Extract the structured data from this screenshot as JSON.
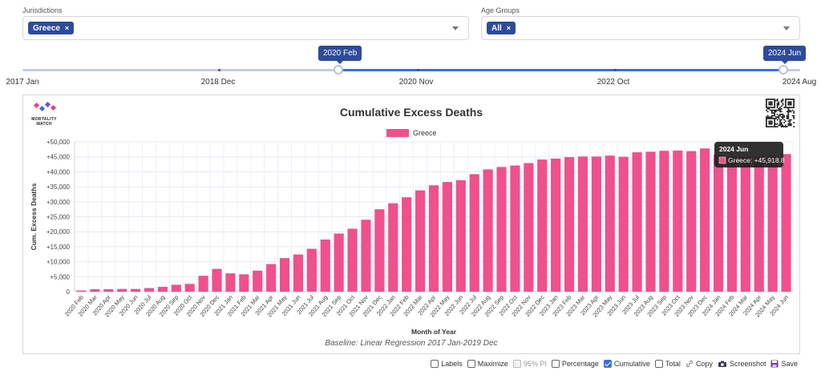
{
  "filters": {
    "jurisdictions": {
      "label": "Jurisdictions",
      "selected": "Greece",
      "remove": "×"
    },
    "age_groups": {
      "label": "Age Groups",
      "selected": "All",
      "remove": "×"
    }
  },
  "date_slider": {
    "start_label": "2020 Feb",
    "end_label": "2024 Jun",
    "axis_ticks": [
      "2017 Jan",
      "2018 Dec",
      "2020 Nov",
      "2022 Oct",
      "2024 Aug"
    ]
  },
  "logo": {
    "line1": "MORTALITY",
    "line2": "WATCH"
  },
  "toolbar": {
    "labels": "Labels",
    "maximize": "Maximize",
    "pi": "95% PI",
    "percentage": "Percentage",
    "cumulative": "Cumulative",
    "total": "Total",
    "copy": "Copy",
    "screenshot": "Screenshot",
    "save": "Save"
  },
  "colors": {
    "bar": "#f0508c",
    "accent": "#2e4b9b",
    "slider": "#3a6fe0"
  },
  "tooltip": {
    "title": "2024 Jun",
    "text": "Greece: +45,918.8"
  },
  "chart_data": {
    "type": "bar",
    "title": "Cumulative Excess Deaths",
    "xlabel": "Month of Year",
    "ylabel": "Cum. Excess Deaths",
    "baseline_note": "Baseline: Linear Regression 2017 Jan-2019 Dec",
    "legend": "top-center",
    "grid": true,
    "ylim": [
      0,
      50000
    ],
    "yticks": [
      "0",
      "+5,000",
      "+10,000",
      "+15,000",
      "+20,000",
      "+25,000",
      "+30,000",
      "+35,000",
      "+40,000",
      "+45,000",
      "+50,000"
    ],
    "categories": [
      "2020 Feb",
      "2020 Mar",
      "2020 Apr",
      "2020 May",
      "2020 Jun",
      "2020 Jul",
      "2020 Aug",
      "2020 Sep",
      "2020 Oct",
      "2020 Nov",
      "2020 Dec",
      "2021 Jan",
      "2021 Feb",
      "2021 Mar",
      "2021 Apr",
      "2021 May",
      "2021 Jun",
      "2021 Jul",
      "2021 Aug",
      "2021 Sep",
      "2021 Oct",
      "2021 Nov",
      "2021 Dec",
      "2022 Jan",
      "2022 Feb",
      "2022 Mar",
      "2022 Apr",
      "2022 May",
      "2022 Jun",
      "2022 Jul",
      "2022 Aug",
      "2022 Sep",
      "2022 Oct",
      "2022 Nov",
      "2022 Dec",
      "2023 Jan",
      "2023 Feb",
      "2023 Mar",
      "2023 Apr",
      "2023 May",
      "2023 Jun",
      "2023 Jul",
      "2023 Aug",
      "2023 Sep",
      "2023 Oct",
      "2023 Nov",
      "2023 Dec",
      "2024 Jan",
      "2024 Feb",
      "2024 Mar",
      "2024 Apr",
      "2024 May",
      "2024 Jun"
    ],
    "series": [
      {
        "name": "Greece",
        "values": [
          400,
          800,
          800,
          900,
          900,
          1200,
          1600,
          2300,
          2600,
          5300,
          7600,
          6100,
          5800,
          7000,
          9200,
          11200,
          12400,
          14300,
          17400,
          19400,
          21000,
          24000,
          27500,
          29500,
          31500,
          33800,
          35500,
          36600,
          37200,
          39200,
          40800,
          41600,
          42100,
          42900,
          44100,
          44400,
          44900,
          45100,
          45100,
          45400,
          45000,
          46500,
          46700,
          47000,
          47100,
          46900,
          47800,
          45700,
          45000,
          45000,
          45000,
          45000,
          45918.8
        ]
      }
    ]
  }
}
